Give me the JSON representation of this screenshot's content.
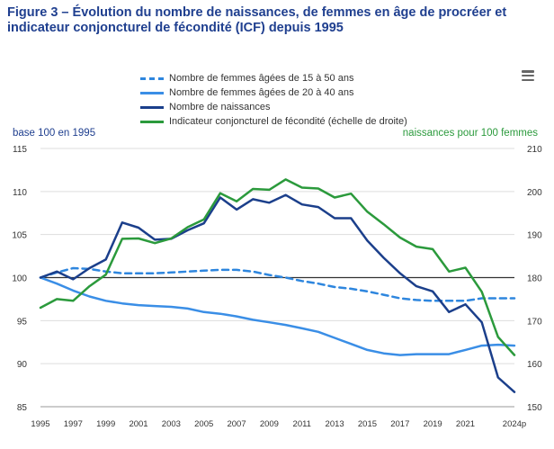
{
  "title_line1": "Figure 3 – Évolution du nombre de naissances, de femmes en âge de procréer et",
  "title_line2": "indicateur conjoncturel de fécondité (ICF) depuis 1995",
  "menu_icon": "hamburger-menu-icon",
  "colors": {
    "title": "#1f3f8f",
    "dashed_15_50": "#2e86de",
    "women_20_40": "#3a8ee6",
    "births": "#1b3f8b",
    "icf": "#2b9a3c",
    "base_line": "#333333",
    "grid": "#dddddd",
    "axis_left_title": "#1f3f8f",
    "axis_right_title": "#2b9a3c"
  },
  "chart_data": {
    "type": "line",
    "left_axis_title": "base 100 en 1995",
    "right_axis_title": "naissances pour 100 femmes",
    "ylim_left": [
      85,
      115
    ],
    "ylim_right": [
      150,
      210
    ],
    "yticks_left": [
      "115",
      "110",
      "105",
      "100",
      "95",
      "90",
      "85"
    ],
    "yticks_right": [
      "210",
      "200",
      "190",
      "180",
      "170",
      "160",
      "150"
    ],
    "xlim": [
      1995,
      2024
    ],
    "x_tick_labels": [
      {
        "x": 1995,
        "label": "1995"
      },
      {
        "x": 1997,
        "label": "1997"
      },
      {
        "x": 1999,
        "label": "1999"
      },
      {
        "x": 2001,
        "label": "2001"
      },
      {
        "x": 2003,
        "label": "2003"
      },
      {
        "x": 2005,
        "label": "2005"
      },
      {
        "x": 2007,
        "label": "2007"
      },
      {
        "x": 2009,
        "label": "2009"
      },
      {
        "x": 2011,
        "label": "2011"
      },
      {
        "x": 2013,
        "label": "2013"
      },
      {
        "x": 2015,
        "label": "2015"
      },
      {
        "x": 2017,
        "label": "2017"
      },
      {
        "x": 2019,
        "label": "2019"
      },
      {
        "x": 2021,
        "label": "2021"
      },
      {
        "x": 2024,
        "label": "2024p"
      }
    ],
    "x": [
      1995,
      1996,
      1997,
      1998,
      1999,
      2000,
      2001,
      2002,
      2003,
      2004,
      2005,
      2006,
      2007,
      2008,
      2009,
      2010,
      2011,
      2012,
      2013,
      2014,
      2015,
      2016,
      2017,
      2018,
      2019,
      2020,
      2021,
      2022,
      2023,
      2024
    ],
    "reference_line": 100,
    "grid": true,
    "series": [
      {
        "name": "Nombre de femmes âgées de 15 à 50 ans",
        "axis": "left",
        "dashed": true,
        "color_key": "dashed_15_50",
        "values": [
          100.0,
          100.6,
          101.1,
          101.0,
          100.7,
          100.5,
          100.5,
          100.5,
          100.6,
          100.7,
          100.8,
          100.9,
          100.9,
          100.7,
          100.3,
          100.0,
          99.6,
          99.3,
          98.9,
          98.7,
          98.4,
          98.0,
          97.6,
          97.4,
          97.3,
          97.3,
          97.3,
          97.6,
          97.6,
          97.6
        ]
      },
      {
        "name": "Nombre de femmes âgées de 20 à 40 ans",
        "axis": "left",
        "dashed": false,
        "color_key": "women_20_40",
        "values": [
          100.0,
          99.3,
          98.5,
          97.8,
          97.3,
          97.0,
          96.8,
          96.7,
          96.6,
          96.4,
          96.0,
          95.8,
          95.5,
          95.1,
          94.8,
          94.5,
          94.1,
          93.7,
          93.0,
          92.3,
          91.6,
          91.2,
          91.0,
          91.1,
          91.1,
          91.1,
          91.6,
          92.1,
          92.2,
          92.1
        ]
      },
      {
        "name": "Nombre de naissances",
        "axis": "left",
        "dashed": false,
        "color_key": "births",
        "values": [
          100.0,
          100.7,
          99.8,
          101.1,
          102.1,
          106.4,
          105.8,
          104.4,
          104.5,
          105.5,
          106.3,
          109.3,
          107.9,
          109.1,
          108.7,
          109.6,
          108.5,
          108.2,
          106.9,
          106.9,
          104.3,
          102.3,
          100.5,
          99.0,
          98.4,
          96.0,
          96.9,
          94.8,
          88.4,
          86.7
        ]
      },
      {
        "name": "Indicateur conjoncturel de fécondité (échelle de droite)",
        "axis": "right",
        "dashed": false,
        "color_key": "icf",
        "values": [
          173.0,
          175.0,
          174.6,
          178.0,
          180.7,
          189.0,
          189.1,
          188.0,
          189.1,
          191.7,
          193.5,
          199.6,
          197.7,
          200.6,
          200.4,
          202.8,
          200.9,
          200.7,
          198.6,
          199.5,
          195.3,
          192.4,
          189.3,
          187.2,
          186.6,
          181.4,
          182.3,
          176.7,
          166.2,
          162.0
        ]
      }
    ]
  }
}
